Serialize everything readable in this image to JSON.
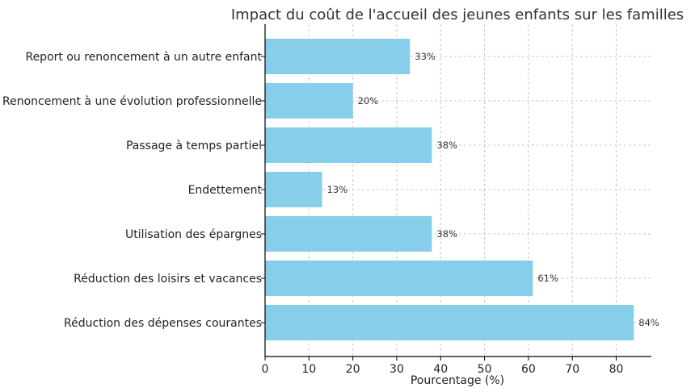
{
  "chart_data": {
    "type": "bar",
    "orientation": "horizontal",
    "title": "Impact du coût de l'accueil des jeunes enfants sur les familles",
    "xlabel": "Pourcentage (%)",
    "ylabel": "",
    "categories": [
      "Réduction des dépenses courantes",
      "Réduction des loisirs et vacances",
      "Utilisation des épargnes",
      "Endettement",
      "Passage à temps partiel",
      "Renoncement à une évolution professionnelle",
      "Report ou renoncement à un autre enfant"
    ],
    "values": [
      84,
      61,
      38,
      13,
      38,
      20,
      33
    ],
    "data_labels": [
      "84%",
      "61%",
      "38%",
      "13%",
      "38%",
      "20%",
      "33%"
    ],
    "xlim": [
      0,
      88
    ],
    "xticks": [
      0,
      10,
      20,
      30,
      40,
      50,
      60,
      70,
      80
    ],
    "grid": true,
    "bar_color": "#87ceeb"
  }
}
